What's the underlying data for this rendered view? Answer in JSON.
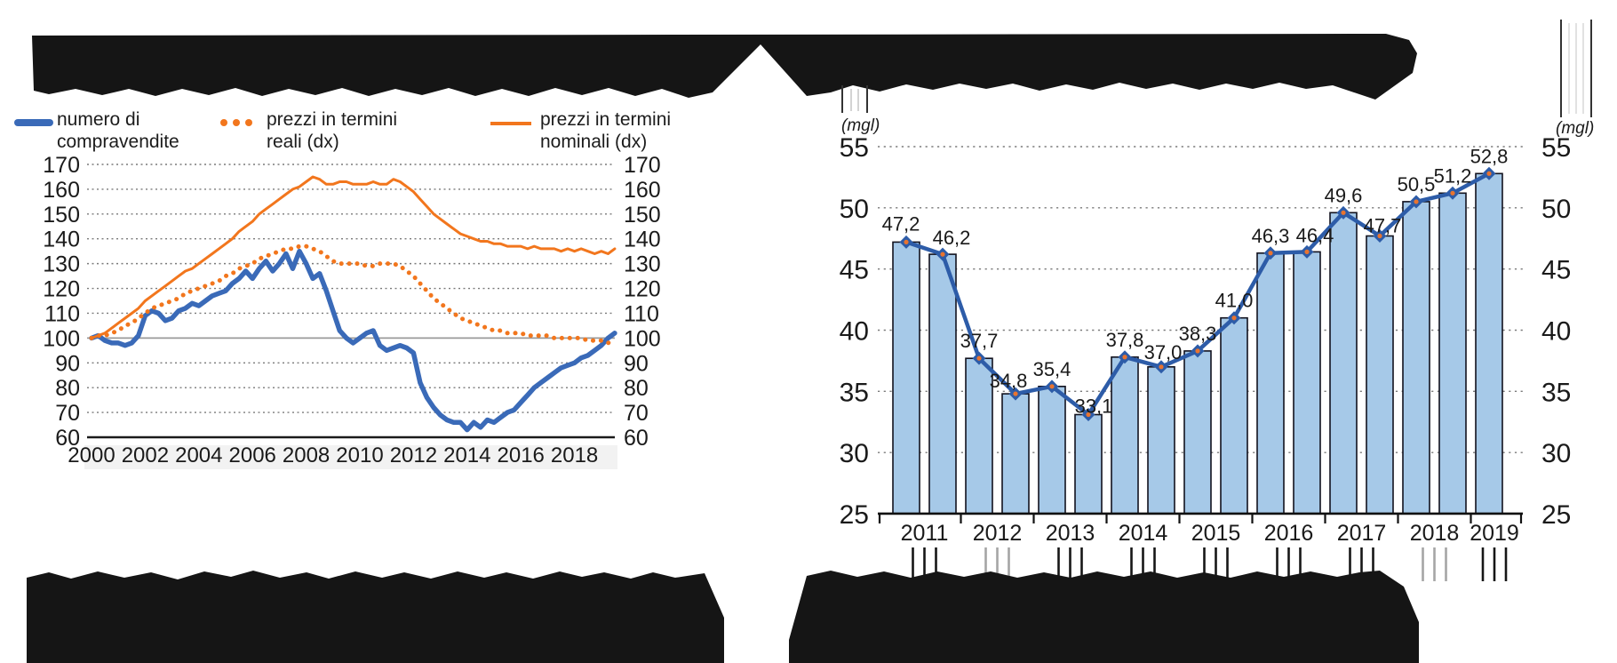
{
  "figure": {
    "title_left": "",
    "title_right": "",
    "note": "titles and source lines are redacted with black bars"
  },
  "chart_data": [
    {
      "type": "line",
      "position": "left",
      "x_start": 2000,
      "x_step_years": 0.25,
      "x_tick_labels": [
        "2000",
        "2002",
        "2004",
        "2006",
        "2008",
        "2010",
        "2012",
        "2014",
        "2016",
        "2018"
      ],
      "ylim": [
        60,
        170
      ],
      "y_ticks": [
        170,
        160,
        150,
        140,
        130,
        120,
        110,
        100,
        90,
        80,
        70,
        60
      ],
      "dual_axis": true,
      "grid": "dotted horizontal, solid reference line at 100, solid baseline at 60",
      "legend_position": "top",
      "legend": [
        {
          "label": "numero di compravendite",
          "swatch": "blue-thick-line"
        },
        {
          "label": "prezzi in termini reali (dx)",
          "swatch": "orange-dotted-line"
        },
        {
          "label": "prezzi in termini nominali (dx)",
          "swatch": "orange-solid-line"
        }
      ],
      "series": [
        {
          "name": "numero di compravendite",
          "axis": "left",
          "color": "#3a6ab8",
          "line_style": "solid-thick",
          "values": [
            100,
            101,
            99,
            98,
            98,
            97,
            98,
            101,
            109,
            111,
            110,
            107,
            108,
            111,
            112,
            114,
            113,
            115,
            117,
            118,
            119,
            122,
            124,
            127,
            124,
            128,
            131,
            127,
            130,
            134,
            128,
            135,
            130,
            124,
            126,
            119,
            111,
            103,
            100,
            98,
            100,
            102,
            103,
            97,
            95,
            96,
            97,
            96,
            94,
            82,
            76,
            72,
            69,
            67,
            66,
            66,
            63,
            66,
            64,
            67,
            66,
            68,
            70,
            71,
            74,
            77,
            80,
            82,
            84,
            86,
            88,
            89,
            90,
            92,
            93,
            95,
            97,
            100,
            102
          ]
        },
        {
          "name": "prezzi in termini reali (dx)",
          "axis": "right",
          "color": "#f2761d",
          "line_style": "dotted",
          "values": [
            100,
            101,
            101,
            102,
            103,
            105,
            106,
            108,
            110,
            112,
            113,
            114,
            115,
            116,
            118,
            119,
            120,
            121,
            122,
            123,
            125,
            126,
            128,
            129,
            130,
            132,
            133,
            134,
            135,
            136,
            136,
            137,
            137,
            136,
            135,
            133,
            131,
            130,
            130,
            130,
            130,
            129,
            129,
            130,
            130,
            130,
            129,
            127,
            125,
            122,
            119,
            116,
            114,
            112,
            110,
            108,
            107,
            106,
            105,
            104,
            103,
            103,
            102,
            102,
            102,
            101,
            101,
            101,
            101,
            100,
            100,
            100,
            100,
            100,
            99,
            99,
            99,
            98,
            99
          ]
        },
        {
          "name": "prezzi in termini nominali (dx)",
          "axis": "right",
          "color": "#f2761d",
          "line_style": "solid",
          "values": [
            100,
            101,
            102,
            104,
            106,
            108,
            110,
            112,
            115,
            117,
            119,
            121,
            123,
            125,
            127,
            128,
            130,
            132,
            134,
            136,
            138,
            140,
            143,
            145,
            147,
            150,
            152,
            154,
            156,
            158,
            160,
            161,
            163,
            165,
            164,
            162,
            162,
            163,
            163,
            162,
            162,
            162,
            163,
            162,
            162,
            164,
            163,
            161,
            159,
            156,
            153,
            150,
            148,
            146,
            144,
            142,
            141,
            140,
            139,
            139,
            138,
            138,
            137,
            137,
            137,
            136,
            137,
            136,
            136,
            136,
            135,
            136,
            135,
            136,
            135,
            134,
            135,
            134,
            136
          ]
        }
      ]
    },
    {
      "type": "bar",
      "position": "right",
      "unit_label": "(mgl)",
      "x_tick_labels": [
        "2011",
        "2012",
        "2013",
        "2014",
        "2015",
        "2016",
        "2017",
        "2018",
        "2019"
      ],
      "bars_per_year": 2,
      "values": [
        47.2,
        46.2,
        37.7,
        34.8,
        35.4,
        33.1,
        37.8,
        37.0,
        38.3,
        41.0,
        46.3,
        46.4,
        49.6,
        47.7,
        50.5,
        51.2,
        52.8
      ],
      "data_labels": [
        "47,2",
        "46,2",
        "37,7",
        "34,8",
        "35,4",
        "33,1",
        "37,8",
        "37,0",
        "38,3",
        "41,0",
        "46,3",
        "46,4",
        "49,6",
        "47,7",
        "50,5",
        "51,2",
        "52,8"
      ],
      "ylim": [
        25,
        55
      ],
      "y_ticks": [
        55,
        50,
        45,
        40,
        35,
        30,
        25
      ],
      "dual_axis": true,
      "line_overlay": "dark blue line with diamond markers through bar tops, same values",
      "bar_fill": "#a6c9e8",
      "bar_stroke": "#12121e",
      "line_color": "#2d5ca8",
      "marker_center_color": "#e87430"
    }
  ]
}
